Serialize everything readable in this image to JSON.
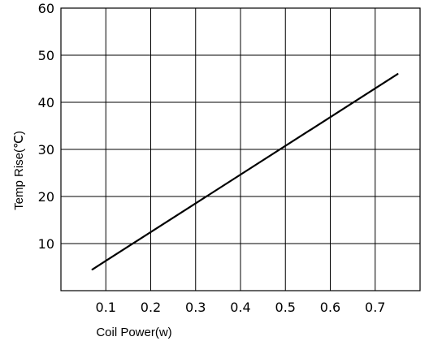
{
  "chart_data": {
    "type": "line",
    "title": "",
    "xlabel": "Coil Power(w)",
    "ylabel": "Temp Rise(℃)",
    "xlim": [
      0.0,
      0.8
    ],
    "ylim": [
      0,
      60
    ],
    "x_ticks": [
      {
        "value": 0.1,
        "label": "0.1"
      },
      {
        "value": 0.2,
        "label": "0.2"
      },
      {
        "value": 0.3,
        "label": "0.3"
      },
      {
        "value": 0.4,
        "label": "0.4"
      },
      {
        "value": 0.5,
        "label": "0.5"
      },
      {
        "value": 0.6,
        "label": "0.6"
      },
      {
        "value": 0.7,
        "label": "0.7"
      }
    ],
    "y_ticks": [
      {
        "value": 10,
        "label": "10"
      },
      {
        "value": 20,
        "label": "20"
      },
      {
        "value": 30,
        "label": "30"
      },
      {
        "value": 40,
        "label": "40"
      },
      {
        "value": 50,
        "label": "50"
      },
      {
        "value": 60,
        "label": "60"
      }
    ],
    "grid": true,
    "series": [
      {
        "x": [
          0.07,
          0.75
        ],
        "y": [
          4.5,
          46
        ]
      }
    ]
  }
}
